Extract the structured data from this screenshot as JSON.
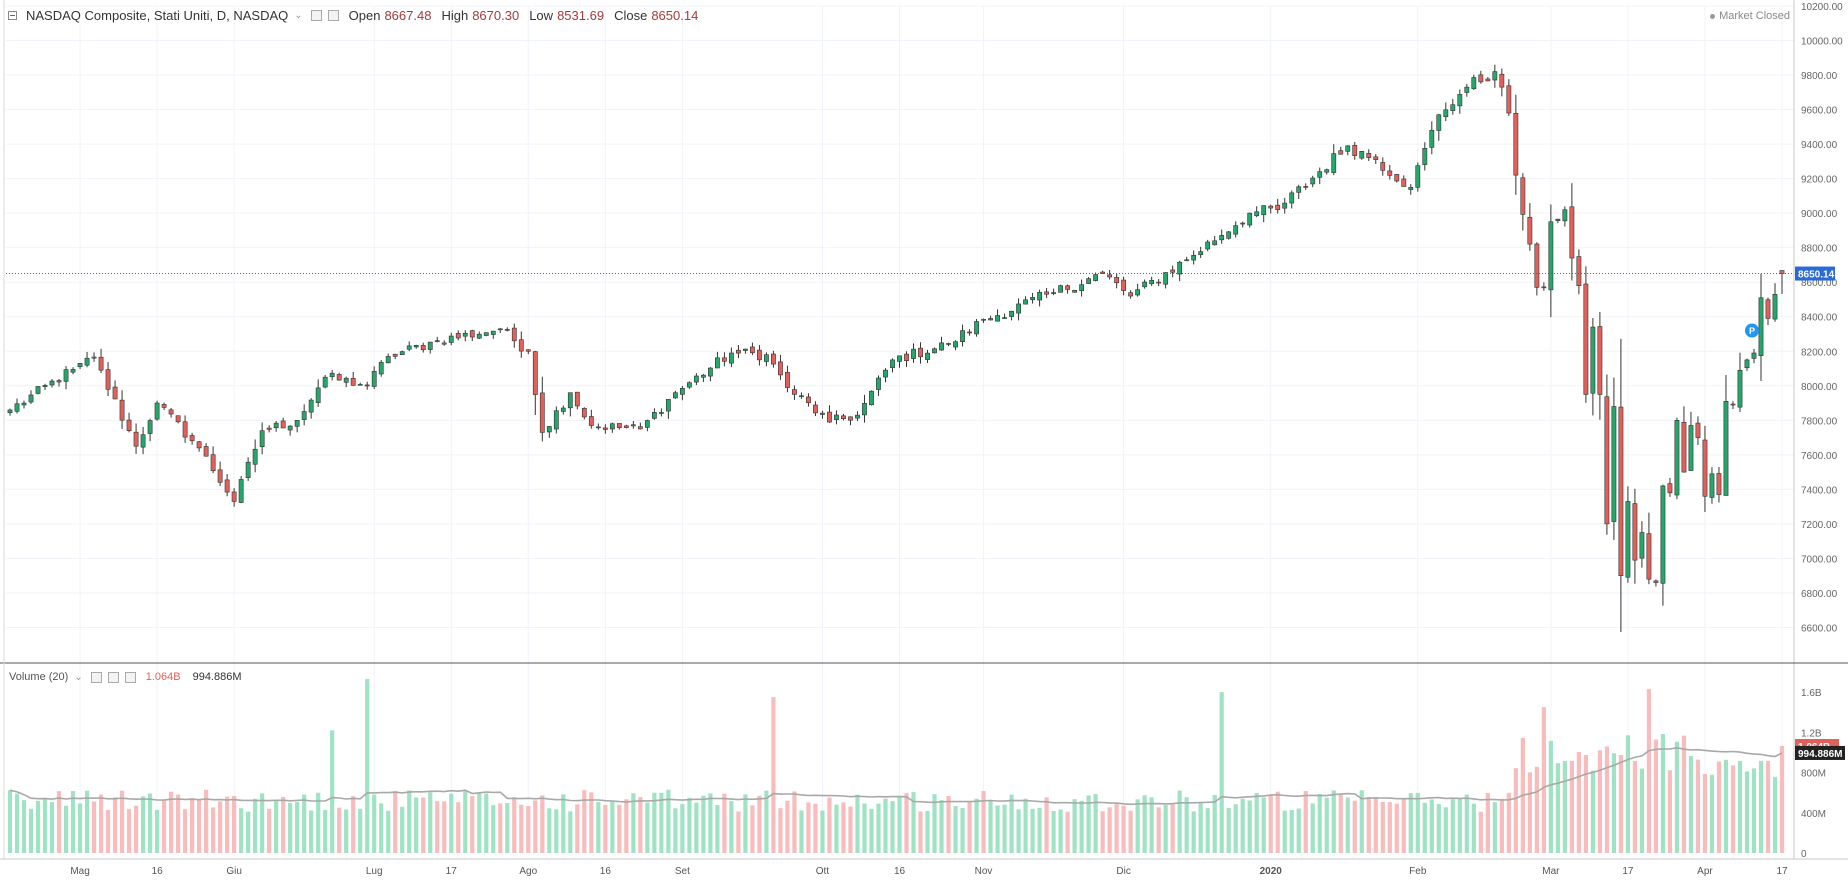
{
  "header": {
    "symbol": "NASDAQ Composite, Stati Uniti, D, NASDAQ",
    "open_label": "Open",
    "open": "8667.48",
    "high_label": "High",
    "high": "8670.30",
    "low_label": "Low",
    "low": "8531.69",
    "close_label": "Close",
    "close": "8650.14",
    "market_status": "Market Closed"
  },
  "volume_legend": {
    "label": "Volume (20)",
    "value": "1.064B",
    "ma_value": "994.886M"
  },
  "last_price_tag": "8650.14",
  "volume_tags": {
    "last": "1.064B",
    "ma": "994.886M"
  },
  "colors": {
    "up": "#26a66b",
    "down": "#e2605a",
    "vol_up": "#9fe3c4",
    "vol_down": "#f7bcbb",
    "ma": "#a8a8a8",
    "price_tag": "#2a6ad8"
  },
  "marker_label": "P",
  "chart_data": [
    {
      "type": "candlestick",
      "title": "NASDAQ Composite, Stati Uniti, D, NASDAQ",
      "ylim": [
        6400,
        10200
      ],
      "y_ticks": [
        6600,
        6800,
        7000,
        7200,
        7400,
        7600,
        7800,
        8000,
        8200,
        8400,
        8600,
        8800,
        9000,
        9200,
        9400,
        9600,
        9800,
        10000,
        10200
      ],
      "y_tick_labels": [
        "6600.00",
        "6800.00",
        "7000.00",
        "7200.00",
        "7400.00",
        "7600.00",
        "7800.00",
        "8000.00",
        "8200.00",
        "8400.00",
        "8600.00",
        "8800.00",
        "9000.00",
        "9200.00",
        "9400.00",
        "9600.00",
        "9800.00",
        "10000.00",
        "10200.00"
      ],
      "x_ticks": [
        {
          "label": "Mag",
          "date": "2019-05-01"
        },
        {
          "label": "16",
          "date": "2019-05-16"
        },
        {
          "label": "Giu",
          "date": "2019-06-03"
        },
        {
          "label": "Lug",
          "date": "2019-07-01"
        },
        {
          "label": "17",
          "date": "2019-07-17"
        },
        {
          "label": "Ago",
          "date": "2019-08-01"
        },
        {
          "label": "16",
          "date": "2019-08-16"
        },
        {
          "label": "Set",
          "date": "2019-09-03"
        },
        {
          "label": "Ott",
          "date": "2019-10-01"
        },
        {
          "label": "16",
          "date": "2019-10-16"
        },
        {
          "label": "Nov",
          "date": "2019-11-01"
        },
        {
          "label": "Dic",
          "date": "2019-12-02"
        },
        {
          "label": "2020",
          "date": "2020-01-02"
        },
        {
          "label": "Feb",
          "date": "2020-02-03"
        },
        {
          "label": "Mar",
          "date": "2020-03-02"
        },
        {
          "label": "17",
          "date": "2020-03-17"
        },
        {
          "label": "Apr",
          "date": "2020-04-01"
        },
        {
          "label": "17",
          "date": "2020-04-17"
        }
      ],
      "anchor_closes": [
        {
          "date": "2019-04-17",
          "close": 7860
        },
        {
          "date": "2019-04-30",
          "close": 8095
        },
        {
          "date": "2019-05-03",
          "close": 8160
        },
        {
          "date": "2019-05-13",
          "close": 7650
        },
        {
          "date": "2019-05-16",
          "close": 7900
        },
        {
          "date": "2019-05-24",
          "close": 7640
        },
        {
          "date": "2019-06-03",
          "close": 7330
        },
        {
          "date": "2019-06-07",
          "close": 7740
        },
        {
          "date": "2019-06-14",
          "close": 7800
        },
        {
          "date": "2019-06-20",
          "close": 8050
        },
        {
          "date": "2019-06-28",
          "close": 8005
        },
        {
          "date": "2019-07-03",
          "close": 8170
        },
        {
          "date": "2019-07-15",
          "close": 8260
        },
        {
          "date": "2019-07-26",
          "close": 8330
        },
        {
          "date": "2019-08-01",
          "close": 8200
        },
        {
          "date": "2019-08-05",
          "close": 7730
        },
        {
          "date": "2019-08-09",
          "close": 7960
        },
        {
          "date": "2019-08-14",
          "close": 7770
        },
        {
          "date": "2019-08-23",
          "close": 7750
        },
        {
          "date": "2019-08-30",
          "close": 7960
        },
        {
          "date": "2019-09-12",
          "close": 8190
        },
        {
          "date": "2019-09-19",
          "close": 8180
        },
        {
          "date": "2019-09-24",
          "close": 7990
        },
        {
          "date": "2019-10-02",
          "close": 7790
        },
        {
          "date": "2019-10-08",
          "close": 7830
        },
        {
          "date": "2019-10-15",
          "close": 8150
        },
        {
          "date": "2019-10-25",
          "close": 8240
        },
        {
          "date": "2019-11-01",
          "close": 8380
        },
        {
          "date": "2019-11-15",
          "close": 8540
        },
        {
          "date": "2019-11-26",
          "close": 8650
        },
        {
          "date": "2019-12-03",
          "close": 8520
        },
        {
          "date": "2019-12-13",
          "close": 8730
        },
        {
          "date": "2019-12-27",
          "close": 9000
        },
        {
          "date": "2020-01-03",
          "close": 9020
        },
        {
          "date": "2020-01-17",
          "close": 9390
        },
        {
          "date": "2020-01-24",
          "close": 9310
        },
        {
          "date": "2020-01-31",
          "close": 9150
        },
        {
          "date": "2020-02-06",
          "close": 9570
        },
        {
          "date": "2020-02-12",
          "close": 9730
        },
        {
          "date": "2020-02-19",
          "close": 9820
        },
        {
          "date": "2020-02-21",
          "close": 9580
        },
        {
          "date": "2020-02-24",
          "close": 9220
        },
        {
          "date": "2020-02-27",
          "close": 8570
        },
        {
          "date": "2020-02-28",
          "close": 8570
        },
        {
          "date": "2020-03-02",
          "close": 8950
        },
        {
          "date": "2020-03-04",
          "close": 9020
        },
        {
          "date": "2020-03-05",
          "close": 8740
        },
        {
          "date": "2020-03-06",
          "close": 8580
        },
        {
          "date": "2020-03-09",
          "close": 7950
        },
        {
          "date": "2020-03-10",
          "close": 8340
        },
        {
          "date": "2020-03-11",
          "close": 7950
        },
        {
          "date": "2020-03-12",
          "close": 7200
        },
        {
          "date": "2020-03-13",
          "close": 7880
        },
        {
          "date": "2020-03-16",
          "close": 6900
        },
        {
          "date": "2020-03-17",
          "close": 7330
        },
        {
          "date": "2020-03-18",
          "close": 6990
        },
        {
          "date": "2020-03-19",
          "close": 7150
        },
        {
          "date": "2020-03-20",
          "close": 6880
        },
        {
          "date": "2020-03-23",
          "close": 6860
        },
        {
          "date": "2020-03-24",
          "close": 7420
        },
        {
          "date": "2020-03-25",
          "close": 7380
        },
        {
          "date": "2020-03-26",
          "close": 7800
        },
        {
          "date": "2020-03-27",
          "close": 7500
        },
        {
          "date": "2020-03-30",
          "close": 7770
        },
        {
          "date": "2020-03-31",
          "close": 7700
        },
        {
          "date": "2020-04-01",
          "close": 7360
        },
        {
          "date": "2020-04-02",
          "close": 7490
        },
        {
          "date": "2020-04-03",
          "close": 7370
        },
        {
          "date": "2020-04-06",
          "close": 7910
        },
        {
          "date": "2020-04-07",
          "close": 7890
        },
        {
          "date": "2020-04-08",
          "close": 8090
        },
        {
          "date": "2020-04-09",
          "close": 8150
        },
        {
          "date": "2020-04-13",
          "close": 8190
        },
        {
          "date": "2020-04-14",
          "close": 8510
        },
        {
          "date": "2020-04-15",
          "close": 8390
        },
        {
          "date": "2020-04-16",
          "close": 8530
        },
        {
          "date": "2020-04-17",
          "close": 8650.14
        }
      ],
      "last_bar": {
        "date": "2020-04-17",
        "open": 8667.48,
        "high": 8670.3,
        "low": 8531.69,
        "close": 8650.14
      },
      "volume_axis": {
        "ylim": [
          0,
          1800000000
        ],
        "ticks": [
          0,
          400000000,
          800000000,
          1200000000,
          1600000000
        ],
        "tick_labels": [
          "0",
          "400M",
          "800M",
          "1.2B",
          "1.6B"
        ]
      },
      "last_volume": 1064000000,
      "volume_ma_period": 20,
      "volume_ma_last": 994886000
    }
  ]
}
